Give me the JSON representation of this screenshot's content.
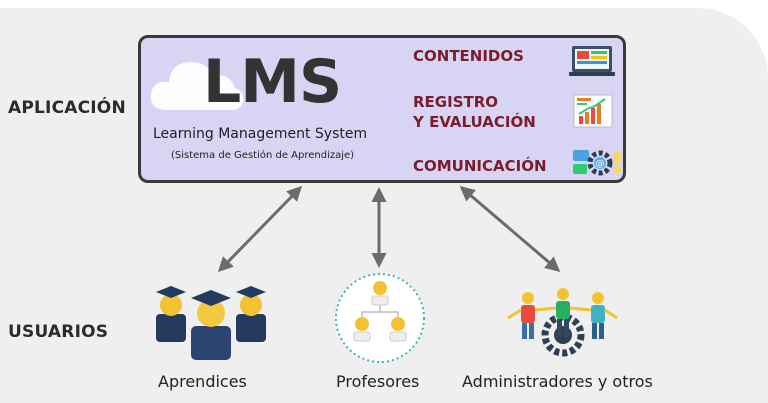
{
  "side_labels": {
    "app": "APLICACIÓN",
    "users": "USUARIOS"
  },
  "lms": {
    "title": "LMS",
    "subtitle": "Learning Management System",
    "subtitle_es": "(Sistema de Gestión de Aprendizaje)"
  },
  "features": {
    "contents": "CONTENIDOS",
    "registry_line1": "REGISTRO",
    "registry_line2": "Y EVALUACIÓN",
    "communication": "COMUNICACIÓN"
  },
  "users": {
    "learners": "Aprendices",
    "teachers": "Profesores",
    "admins": "Administradores y otros"
  },
  "colors": {
    "box_fill": "#d7d4f4",
    "feature_text": "#7a1c2c",
    "arrow": "#6b6b6b",
    "navy": "#243a5e",
    "gold": "#f2c230"
  },
  "icons": [
    "cloud-icon",
    "monitor-icon",
    "report-chart-icon",
    "chat-gear-icon",
    "graduate-icon",
    "team-hierarchy-icon",
    "people-gear-icon"
  ]
}
